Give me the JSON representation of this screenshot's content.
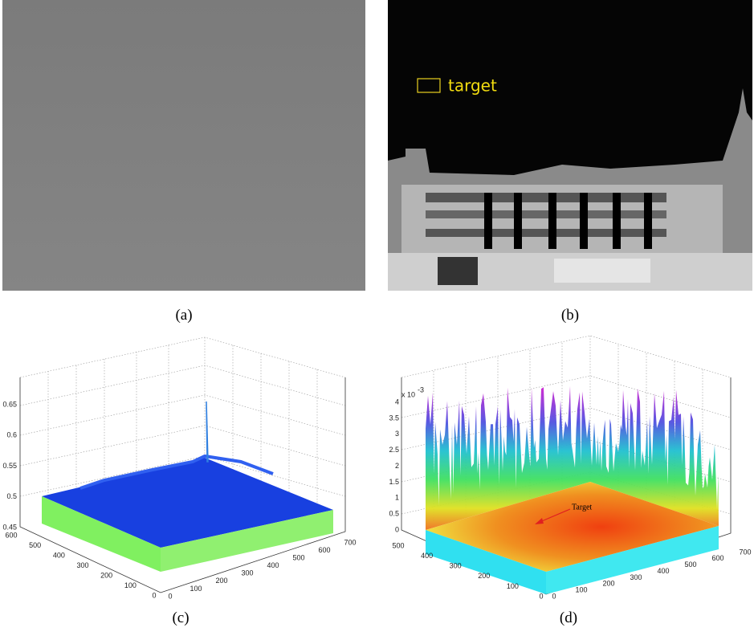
{
  "figure": {
    "panels": [
      {
        "caption": "(a)"
      },
      {
        "caption": "(b)",
        "label": "target"
      },
      {
        "caption": "(c)",
        "z_ticks": [
          "0.45",
          "0.5",
          "0.55",
          "0.6",
          "0.65"
        ],
        "y_ticks": [
          "0",
          "100",
          "200",
          "300",
          "400",
          "500",
          "600"
        ],
        "x_ticks": [
          "0",
          "100",
          "200",
          "300",
          "400",
          "500",
          "600",
          "700"
        ]
      },
      {
        "caption": "(d)",
        "z_ticks": [
          "0",
          "0.5",
          "1",
          "1.5",
          "2",
          "2.5",
          "3",
          "3.5",
          "4"
        ],
        "z_scale": "x 10",
        "z_scale_exponent": "-3",
        "y_ticks": [
          "0",
          "100",
          "200",
          "300",
          "400",
          "500"
        ],
        "x_ticks": [
          "0",
          "100",
          "200",
          "300",
          "400",
          "500",
          "600",
          "700"
        ],
        "label": "Target"
      }
    ]
  }
}
